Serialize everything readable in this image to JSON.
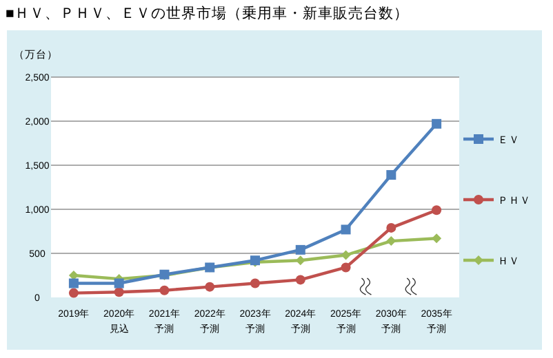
{
  "chart_data": {
    "type": "line",
    "title": "■ＨＶ、ＰＨＶ、ＥＶの世界市場（乗用車・新車販売台数）",
    "ylabel": "（万台）",
    "categories": [
      "2019年",
      "2020年見込",
      "2021年予測",
      "2022年予測",
      "2023年予測",
      "2024年予測",
      "2025年予測",
      "2030年予測",
      "2035年予測"
    ],
    "series": [
      {
        "name": "ＥＶ",
        "color": "#4f81bd",
        "marker": "square",
        "values": [
          160,
          160,
          260,
          340,
          420,
          540,
          770,
          1390,
          1970
        ]
      },
      {
        "name": "ＰＨＶ",
        "color": "#c0504d",
        "marker": "circle",
        "values": [
          50,
          60,
          80,
          120,
          160,
          200,
          340,
          790,
          990
        ]
      },
      {
        "name": "ＨＶ",
        "color": "#9bbb59",
        "marker": "diamond",
        "values": [
          250,
          210,
          250,
          340,
          400,
          420,
          480,
          640,
          670
        ]
      }
    ],
    "ylim": [
      0,
      2500
    ],
    "yticks": [
      0,
      500,
      {
        "value": 1000,
        "label": "1,000"
      },
      {
        "value": 1500,
        "label": "1,500"
      },
      {
        "value": 2000,
        "label": "2,000"
      },
      {
        "value": 2500,
        "label": "2,500"
      }
    ],
    "grid": "y",
    "legend": "right"
  }
}
